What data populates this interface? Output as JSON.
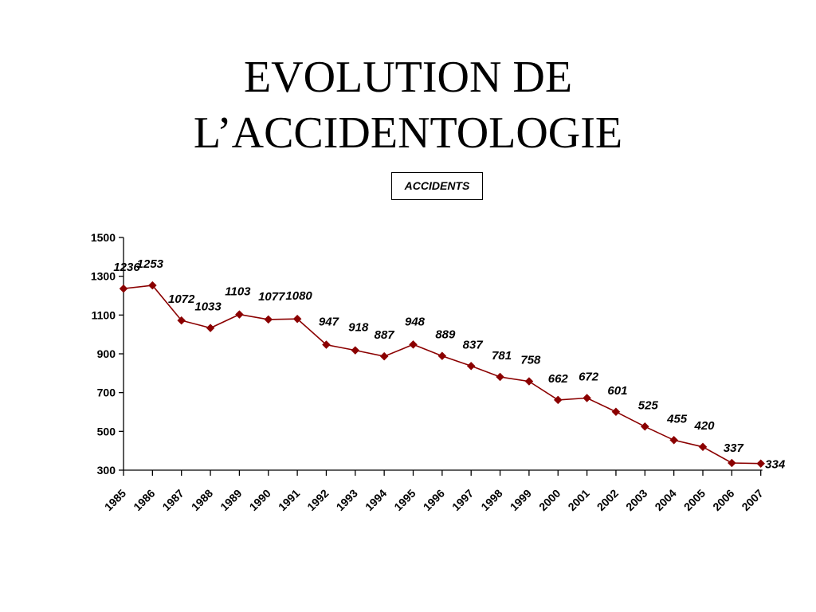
{
  "title": {
    "line1": "EVOLUTION DE",
    "line2": "L’ACCIDENTOLOGIE"
  },
  "chart_data": {
    "type": "line",
    "legend": "ACCIDENTS",
    "legend_position": "top-center",
    "series_color": "#8b0000",
    "marker": "diamond",
    "x": [
      "1985",
      "1986",
      "1987",
      "1988",
      "1989",
      "1990",
      "1991",
      "1992",
      "1993",
      "1994",
      "1995",
      "1996",
      "1997",
      "1998",
      "1999",
      "2000",
      "2001",
      "2002",
      "2003",
      "2004",
      "2005",
      "2006",
      "2007"
    ],
    "series": [
      {
        "name": "ACCIDENTS",
        "values": [
          1236,
          1253,
          1072,
          1033,
          1103,
          1077,
          1080,
          947,
          918,
          887,
          948,
          889,
          837,
          781,
          758,
          662,
          672,
          601,
          525,
          455,
          420,
          337,
          334
        ]
      }
    ],
    "ylim": [
      300,
      1500
    ],
    "yticks": [
      300,
      500,
      700,
      900,
      1100,
      1300,
      1500
    ],
    "grid": false
  }
}
